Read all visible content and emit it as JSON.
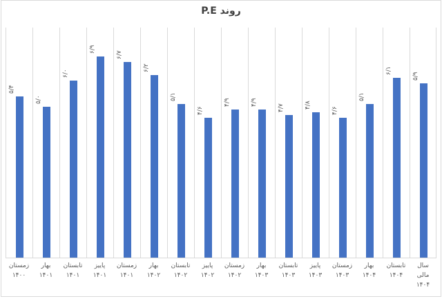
{
  "title": "روند P.E",
  "chart_data": {
    "type": "bar",
    "title": "روند P.E",
    "rtl_text": true,
    "legend": "none",
    "grid": "vertical-only",
    "axis_value_labels_visible": false,
    "categories": [
      "زمستان ۱۴۰۰",
      "بهار ۱۴۰۱",
      "تابستان ۱۴۰۱",
      "پاییز ۱۴۰۱",
      "زمستان ۱۴۰۱",
      "بهار ۱۴۰۲",
      "تابستان ۱۴۰۲",
      "پاییز ۱۴۰۲",
      "زمستان ۱۴۰۲",
      "بهار ۱۴۰۳",
      "تابستان ۱۴۰۳",
      "پاییز ۱۴۰۳",
      "زمستان ۱۴۰۳",
      "بهار ۱۴۰۴",
      "تابستان ۱۴۰۴",
      "سال مالی ۱۴۰۴"
    ],
    "category_lines": [
      [
        "زمستان",
        "۱۴۰۰"
      ],
      [
        "بهار",
        "۱۴۰۱"
      ],
      [
        "تابستان",
        "۱۴۰۱"
      ],
      [
        "پاییز",
        "۱۴۰۱"
      ],
      [
        "زمستان",
        "۱۴۰۱"
      ],
      [
        "بهار",
        "۱۴۰۲"
      ],
      [
        "تابستان",
        "۱۴۰۲"
      ],
      [
        "پاییز",
        "۱۴۰۲"
      ],
      [
        "زمستان",
        "۱۴۰۲"
      ],
      [
        "بهار",
        "۱۴۰۳"
      ],
      [
        "تابستان",
        "۱۴۰۳"
      ],
      [
        "پاییز",
        "۱۴۰۳"
      ],
      [
        "زمستان",
        "۱۴۰۳"
      ],
      [
        "بهار",
        "۱۴۰۴"
      ],
      [
        "تابستان",
        "۱۴۰۴"
      ],
      [
        "سال",
        "مالی",
        "۱۴۰۴"
      ]
    ],
    "values": [
      5.4,
      5.0,
      6.0,
      6.9,
      6.7,
      6.2,
      5.1,
      4.6,
      4.9,
      4.9,
      4.7,
      4.8,
      4.6,
      5.1,
      6.1,
      5.9
    ],
    "value_labels": [
      "۵/۴",
      "۵/۰",
      "۶/۰",
      "۶/۹",
      "۶/۷",
      "۶/۲",
      "۵/۱",
      "۴/۶",
      "۴/۹",
      "۴/۹",
      "۴/۷",
      "۴/۸",
      "۴/۶",
      "۵/۱",
      "۶/۱",
      "۵/۹"
    ],
    "ylim": [
      -0.7,
      8.0
    ],
    "bar_color": "#4472C4",
    "gridline_color": "#D9D9D9",
    "label_color": "#595959",
    "title_color": "#404040",
    "background_color": "#FFFFFF"
  }
}
